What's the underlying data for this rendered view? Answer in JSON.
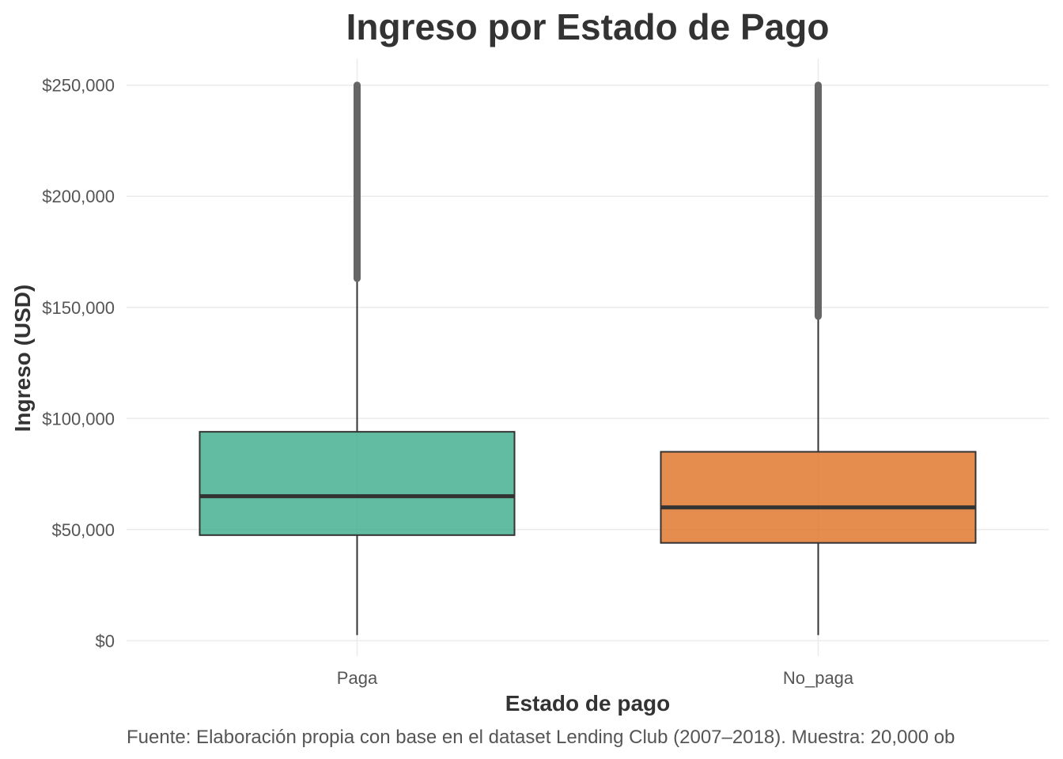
{
  "chart_data": {
    "type": "boxplot",
    "title": "Ingreso por Estado de Pago",
    "xlabel": "Estado de pago",
    "ylabel": "Ingreso (USD)",
    "caption": "Fuente: Elaboración propia con base en el dataset Lending Club (2007–2018). Muestra: 20,000 ob",
    "ylim": [
      -7000,
      262000
    ],
    "yticks": [
      0,
      50000,
      100000,
      150000,
      200000,
      250000
    ],
    "ytick_labels": [
      "$0",
      "$50,000",
      "$100,000",
      "$150,000",
      "$200,000",
      "$250,000"
    ],
    "grid": true,
    "legend": "none",
    "categories": [
      "Paga",
      "No_paga"
    ],
    "boxes": [
      {
        "category": "Paga",
        "whisker_low": 2500,
        "q1": 47500,
        "median": 65000,
        "q3": 94000,
        "whisker_high": 163000,
        "outlier_range": [
          163000,
          250000
        ],
        "color": "#3aab8a"
      },
      {
        "category": "No_paga",
        "whisker_low": 2500,
        "q1": 44000,
        "median": 60000,
        "q3": 85000,
        "whisker_high": 146000,
        "outlier_range": [
          146000,
          250000
        ],
        "color": "#df7122"
      }
    ]
  },
  "colors": {
    "text_dark": "#333333",
    "text_tick": "#555555",
    "grid": "#ebebeb",
    "outlier": "#666666",
    "box_border": "#333333"
  }
}
